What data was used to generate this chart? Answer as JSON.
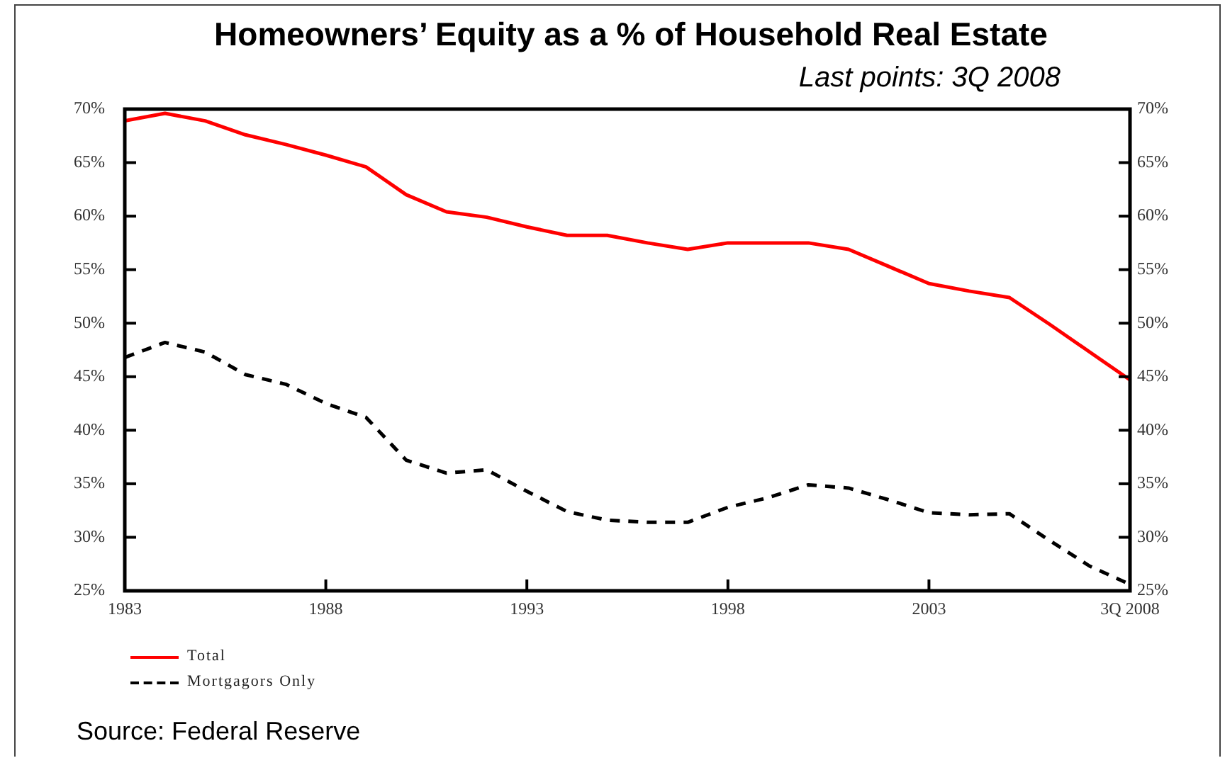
{
  "chart_data": {
    "type": "line",
    "title": "Homeowners’ Equity as a % of Household Real Estate",
    "subtitle": "Last points: 3Q 2008",
    "x": [
      1983,
      1984,
      1985,
      1986,
      1987,
      1988,
      1989,
      1990,
      1991,
      1992,
      1993,
      1994,
      1995,
      1996,
      1997,
      1998,
      1999,
      2000,
      2001,
      2002,
      2003,
      2004,
      2005,
      2006,
      2007,
      2008
    ],
    "series": [
      {
        "name": "Total",
        "color": "#ff0000",
        "line_style": "solid",
        "values": [
          68.9,
          69.6,
          68.9,
          67.6,
          66.7,
          65.7,
          64.6,
          62.0,
          60.4,
          59.9,
          59.0,
          58.2,
          58.2,
          57.5,
          56.9,
          57.5,
          57.5,
          57.5,
          56.9,
          55.3,
          53.7,
          53.0,
          52.4,
          49.9,
          47.3,
          44.7
        ]
      },
      {
        "name": "Mortgagors Only",
        "color": "#000000",
        "line_style": "dashed",
        "values": [
          46.8,
          48.2,
          47.3,
          45.2,
          44.3,
          42.5,
          41.2,
          37.2,
          36.0,
          36.3,
          34.3,
          32.4,
          31.6,
          31.4,
          31.4,
          32.8,
          33.7,
          34.9,
          34.6,
          33.5,
          32.3,
          32.1,
          32.2,
          29.7,
          27.3,
          25.6
        ]
      }
    ],
    "xlim": [
      1983,
      2008
    ],
    "xticks": [
      1983,
      1988,
      1993,
      1998,
      2003,
      {
        "value": 2008,
        "label": "3Q 2008"
      }
    ],
    "ylim": [
      25,
      70
    ],
    "yticks": [
      {
        "value": 25,
        "label": "25%"
      },
      {
        "value": 30,
        "label": "30%"
      },
      {
        "value": 35,
        "label": "35%"
      },
      {
        "value": 40,
        "label": "40%"
      },
      {
        "value": 45,
        "label": "45%"
      },
      {
        "value": 50,
        "label": "50%"
      },
      {
        "value": 55,
        "label": "55%"
      },
      {
        "value": 60,
        "label": "60%"
      },
      {
        "value": 65,
        "label": "65%"
      },
      {
        "value": 70,
        "label": "70%"
      }
    ],
    "y2lim": [
      25,
      70
    ],
    "y2ticks": [
      {
        "value": 25,
        "label": "25%"
      },
      {
        "value": 30,
        "label": "30%"
      },
      {
        "value": 35,
        "label": "35%"
      },
      {
        "value": 40,
        "label": "40%"
      },
      {
        "value": 45,
        "label": "45%"
      },
      {
        "value": 50,
        "label": "50%"
      },
      {
        "value": 55,
        "label": "55%"
      },
      {
        "value": 60,
        "label": "60%"
      },
      {
        "value": 65,
        "label": "65%"
      },
      {
        "value": 70,
        "label": "70%"
      }
    ],
    "legend": "bottom left",
    "annotations": [
      "Source: Federal Reserve"
    ]
  }
}
